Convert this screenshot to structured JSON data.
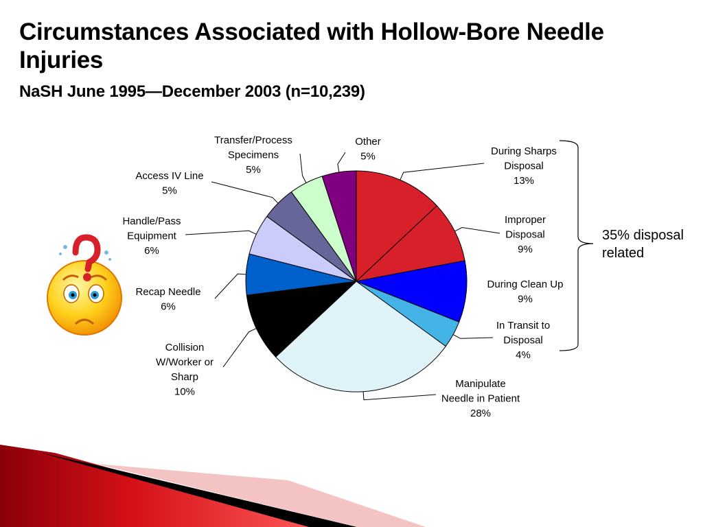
{
  "slide": {
    "title": "Circumstances Associated with Hollow-Bore Needle Injuries",
    "subtitle": "NaSH June 1995—December 2003 (n=10,239)",
    "note_line1": "35% disposal",
    "note_line2": "related",
    "icon": "worried-face-question-icon"
  },
  "chart_data": {
    "type": "pie",
    "title": "",
    "unit": "%",
    "slices": [
      {
        "label_lines": [
          "During Sharps",
          "Disposal"
        ],
        "value": 13,
        "value_label": "13%",
        "color": "#d8202a"
      },
      {
        "label_lines": [
          "Improper",
          "Disposal"
        ],
        "value": 9,
        "value_label": "9%",
        "color": "#d8202a"
      },
      {
        "label_lines": [
          "During Clean Up"
        ],
        "value": 9,
        "value_label": "9%",
        "color": "#0000ff"
      },
      {
        "label_lines": [
          "In Transit to",
          "Disposal"
        ],
        "value": 4,
        "value_label": "4%",
        "color": "#44b4e6"
      },
      {
        "label_lines": [
          "Manipulate",
          "Needle in Patient"
        ],
        "value": 28,
        "value_label": "28%",
        "color": "#dff3f8"
      },
      {
        "label_lines": [
          "Collision",
          "W/Worker or",
          "Sharp"
        ],
        "value": 10,
        "value_label": "10%",
        "color": "#000000"
      },
      {
        "label_lines": [
          "Recap Needle"
        ],
        "value": 6,
        "value_label": "6%",
        "color": "#0060cc"
      },
      {
        "label_lines": [
          "Handle/Pass",
          "Equipment"
        ],
        "value": 6,
        "value_label": "6%",
        "color": "#ccccfa"
      },
      {
        "label_lines": [
          "Access IV Line"
        ],
        "value": 5,
        "value_label": "5%",
        "color": "#666699"
      },
      {
        "label_lines": [
          "Transfer/Process",
          "Specimens"
        ],
        "value": 5,
        "value_label": "5%",
        "color": "#ccffcc"
      },
      {
        "label_lines": [
          "Other"
        ],
        "value": 5,
        "value_label": "5%",
        "color": "#800080"
      }
    ],
    "bracket_group": [
      "During Sharps Disposal",
      "Improper Disposal",
      "During Clean Up",
      "In Transit to Disposal"
    ],
    "legend": "none"
  }
}
